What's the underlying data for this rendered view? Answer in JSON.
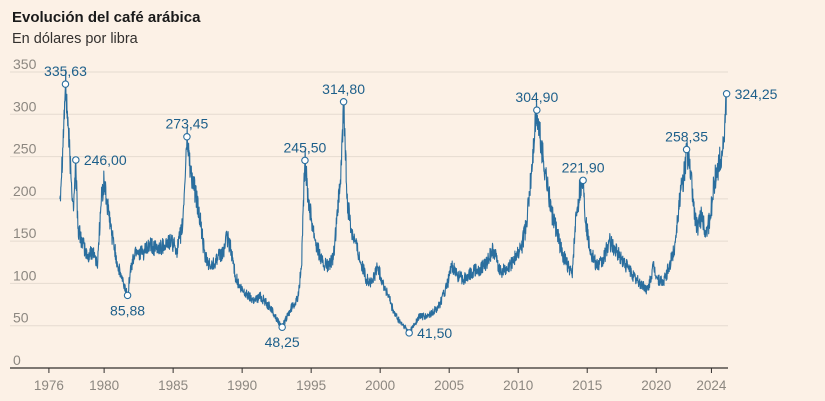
{
  "chart_data": {
    "type": "line",
    "title": "Evolución del café arábica",
    "subtitle": "En dólares por libra",
    "ylim": [
      0,
      350
    ],
    "y_ticks": [
      0,
      50,
      100,
      150,
      200,
      250,
      300,
      350
    ],
    "xlim": [
      1975.5,
      2025.2
    ],
    "x_ticks": [
      1976,
      1980,
      1985,
      1990,
      1995,
      2000,
      2005,
      2010,
      2015,
      2020,
      2024
    ],
    "colors": {
      "line": "#2a6e9e",
      "label": "#1d5f8a",
      "grid": "#e5dbd0",
      "background": "#fcf1e6"
    },
    "series": [
      {
        "name": "Café arábica",
        "points": [
          [
            1976.8,
            200
          ],
          [
            1977.0,
            260
          ],
          [
            1977.2,
            335.63
          ],
          [
            1977.4,
            285
          ],
          [
            1977.6,
            225
          ],
          [
            1977.8,
            190
          ],
          [
            1977.95,
            246.0
          ],
          [
            1978.1,
            165
          ],
          [
            1978.4,
            150
          ],
          [
            1978.8,
            130
          ],
          [
            1979.2,
            140
          ],
          [
            1979.5,
            120
          ],
          [
            1979.8,
            200
          ],
          [
            1980.0,
            220
          ],
          [
            1980.3,
            185
          ],
          [
            1980.6,
            155
          ],
          [
            1981.0,
            120
          ],
          [
            1981.4,
            100
          ],
          [
            1981.7,
            85.88
          ],
          [
            1981.9,
            115
          ],
          [
            1982.3,
            140
          ],
          [
            1982.8,
            135
          ],
          [
            1983.3,
            145
          ],
          [
            1983.8,
            140
          ],
          [
            1984.3,
            145
          ],
          [
            1984.8,
            150
          ],
          [
            1985.3,
            140
          ],
          [
            1985.7,
            170
          ],
          [
            1986.0,
            273.45
          ],
          [
            1986.3,
            230
          ],
          [
            1986.7,
            200
          ],
          [
            1987.0,
            170
          ],
          [
            1987.3,
            130
          ],
          [
            1987.7,
            120
          ],
          [
            1988.2,
            130
          ],
          [
            1988.6,
            135
          ],
          [
            1988.9,
            155
          ],
          [
            1989.2,
            140
          ],
          [
            1989.5,
            110
          ],
          [
            1989.8,
            95
          ],
          [
            1990.1,
            90
          ],
          [
            1990.5,
            85
          ],
          [
            1990.9,
            80
          ],
          [
            1991.3,
            85
          ],
          [
            1991.7,
            78
          ],
          [
            1992.1,
            70
          ],
          [
            1992.5,
            58
          ],
          [
            1992.9,
            48.25
          ],
          [
            1993.3,
            62
          ],
          [
            1993.7,
            75
          ],
          [
            1994.0,
            80
          ],
          [
            1994.3,
            120
          ],
          [
            1994.55,
            245.5
          ],
          [
            1994.8,
            200
          ],
          [
            1995.1,
            170
          ],
          [
            1995.4,
            145
          ],
          [
            1995.8,
            125
          ],
          [
            1996.2,
            120
          ],
          [
            1996.6,
            128
          ],
          [
            1996.9,
            180
          ],
          [
            1997.2,
            240
          ],
          [
            1997.35,
            314.8
          ],
          [
            1997.6,
            200
          ],
          [
            1997.9,
            165
          ],
          [
            1998.2,
            150
          ],
          [
            1998.6,
            125
          ],
          [
            1999.0,
            105
          ],
          [
            1999.4,
            100
          ],
          [
            1999.8,
            120
          ],
          [
            2000.2,
            100
          ],
          [
            2000.6,
            85
          ],
          [
            2001.0,
            65
          ],
          [
            2001.4,
            55
          ],
          [
            2001.8,
            48
          ],
          [
            2002.1,
            41.5
          ],
          [
            2002.5,
            52
          ],
          [
            2002.9,
            62
          ],
          [
            2003.3,
            60
          ],
          [
            2003.8,
            65
          ],
          [
            2004.3,
            75
          ],
          [
            2004.8,
            95
          ],
          [
            2005.2,
            120
          ],
          [
            2005.6,
            110
          ],
          [
            2006.0,
            105
          ],
          [
            2006.4,
            110
          ],
          [
            2006.8,
            115
          ],
          [
            2007.2,
            115
          ],
          [
            2007.7,
            125
          ],
          [
            2008.2,
            140
          ],
          [
            2008.7,
            115
          ],
          [
            2009.2,
            115
          ],
          [
            2009.7,
            130
          ],
          [
            2010.2,
            140
          ],
          [
            2010.6,
            170
          ],
          [
            2010.9,
            220
          ],
          [
            2011.2,
            280
          ],
          [
            2011.35,
            304.9
          ],
          [
            2011.7,
            260
          ],
          [
            2012.0,
            230
          ],
          [
            2012.4,
            185
          ],
          [
            2012.8,
            160
          ],
          [
            2013.2,
            135
          ],
          [
            2013.6,
            120
          ],
          [
            2013.9,
            110
          ],
          [
            2014.2,
            180
          ],
          [
            2014.5,
            215
          ],
          [
            2014.7,
            221.9
          ],
          [
            2014.9,
            170
          ],
          [
            2015.3,
            135
          ],
          [
            2015.7,
            120
          ],
          [
            2016.1,
            125
          ],
          [
            2016.6,
            150
          ],
          [
            2017.0,
            140
          ],
          [
            2017.5,
            128
          ],
          [
            2018.0,
            118
          ],
          [
            2018.5,
            105
          ],
          [
            2019.0,
            98
          ],
          [
            2019.4,
            92
          ],
          [
            2019.8,
            120
          ],
          [
            2020.1,
            105
          ],
          [
            2020.5,
            100
          ],
          [
            2020.9,
            118
          ],
          [
            2021.3,
            140
          ],
          [
            2021.7,
            200
          ],
          [
            2022.0,
            225
          ],
          [
            2022.2,
            258.35
          ],
          [
            2022.5,
            230
          ],
          [
            2022.8,
            180
          ],
          [
            2023.0,
            165
          ],
          [
            2023.3,
            180
          ],
          [
            2023.6,
            160
          ],
          [
            2023.9,
            175
          ],
          [
            2024.2,
            220
          ],
          [
            2024.5,
            240
          ],
          [
            2024.8,
            255
          ],
          [
            2025.0,
            290
          ],
          [
            2025.1,
            324.25
          ]
        ]
      }
    ],
    "annotations": [
      {
        "x": 1977.2,
        "y": 335.63,
        "label": "335,63",
        "dir": "above-center"
      },
      {
        "x": 1977.95,
        "y": 246.0,
        "label": "246,00",
        "dir": "right"
      },
      {
        "x": 1981.7,
        "y": 85.88,
        "label": "85,88",
        "dir": "below-center"
      },
      {
        "x": 1986.0,
        "y": 273.45,
        "label": "273,45",
        "dir": "above-center"
      },
      {
        "x": 1992.9,
        "y": 48.25,
        "label": "48,25",
        "dir": "below-center"
      },
      {
        "x": 1994.55,
        "y": 245.5,
        "label": "245,50",
        "dir": "above-center"
      },
      {
        "x": 1997.35,
        "y": 314.8,
        "label": "314,80",
        "dir": "above-center"
      },
      {
        "x": 2002.1,
        "y": 41.5,
        "label": "41,50",
        "dir": "right"
      },
      {
        "x": 2011.35,
        "y": 304.9,
        "label": "304,90",
        "dir": "above-center"
      },
      {
        "x": 2014.7,
        "y": 221.9,
        "label": "221,90",
        "dir": "above-center"
      },
      {
        "x": 2022.2,
        "y": 258.35,
        "label": "258,35",
        "dir": "above-center"
      },
      {
        "x": 2025.1,
        "y": 324.25,
        "label": "324,25",
        "dir": "right"
      }
    ]
  }
}
